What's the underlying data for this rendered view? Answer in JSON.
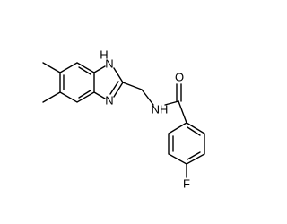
{
  "atoms": [
    "H",
    "N",
    "N",
    "NH",
    "O",
    "F"
  ]
}
